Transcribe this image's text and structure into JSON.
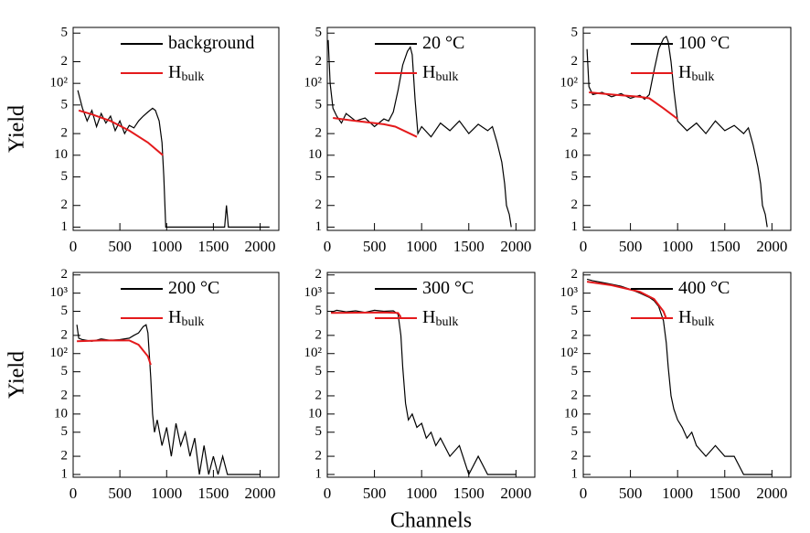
{
  "chart_data": [
    {
      "type": "line",
      "ylabel": "Yield",
      "log_y": true,
      "xlim": [
        0,
        2200
      ],
      "xticks": [
        0,
        500,
        1000,
        1500,
        2000
      ],
      "ylim": [
        0.9,
        600
      ],
      "yticks": [
        1,
        2,
        5,
        10,
        {
          "value": 20,
          "label": "2"
        },
        {
          "value": 50,
          "label": "5"
        },
        {
          "value": 100,
          "label": "10²"
        },
        {
          "value": 200,
          "label": "2"
        },
        {
          "value": 500,
          "label": "5"
        }
      ],
      "series": [
        {
          "name": "background",
          "color": "#000000",
          "x": [
            50,
            100,
            150,
            200,
            250,
            300,
            350,
            400,
            450,
            500,
            550,
            600,
            650,
            700,
            750,
            800,
            850,
            880,
            920,
            950,
            970,
            990,
            1000,
            1100,
            1200,
            1300,
            1400,
            1500,
            1600,
            1620,
            1640,
            1660,
            1700,
            1800,
            1900,
            2000,
            2100
          ],
          "values": [
            80,
            45,
            30,
            42,
            25,
            38,
            28,
            35,
            22,
            30,
            20,
            26,
            24,
            30,
            35,
            40,
            45,
            42,
            30,
            15,
            5,
            1,
            1,
            1,
            1,
            1,
            1,
            1,
            1,
            1,
            2,
            1,
            1,
            1,
            1,
            1,
            1
          ]
        },
        {
          "name": "H",
          "subscript": "bulk",
          "color": "#e41a1c",
          "x": [
            60,
            200,
            400,
            600,
            800,
            960
          ],
          "values": [
            42,
            37,
            30,
            22,
            15,
            10
          ]
        }
      ]
    },
    {
      "type": "line",
      "log_y": true,
      "xlim": [
        0,
        2200
      ],
      "xticks": [
        0,
        500,
        1000,
        1500,
        2000
      ],
      "ylim": [
        0.9,
        600
      ],
      "yticks": [
        1,
        2,
        5,
        10,
        {
          "value": 20,
          "label": "2"
        },
        {
          "value": 50,
          "label": "5"
        },
        {
          "value": 100,
          "label": "10²"
        },
        {
          "value": 200,
          "label": "2"
        },
        {
          "value": 500,
          "label": "5"
        }
      ],
      "series": [
        {
          "name": "20 °C",
          "color": "#000000",
          "x": [
            10,
            30,
            60,
            100,
            150,
            200,
            300,
            400,
            500,
            600,
            650,
            700,
            750,
            800,
            850,
            880,
            900,
            930,
            960,
            1000,
            1100,
            1200,
            1300,
            1400,
            1500,
            1600,
            1700,
            1750,
            1800,
            1850,
            1880,
            1900,
            1930,
            1950
          ],
          "values": [
            400,
            100,
            45,
            35,
            28,
            38,
            30,
            33,
            25,
            32,
            30,
            40,
            80,
            180,
            280,
            320,
            250,
            60,
            20,
            25,
            18,
            28,
            22,
            30,
            20,
            27,
            22,
            25,
            15,
            8,
            4,
            2,
            1.5,
            1
          ]
        },
        {
          "name": "H",
          "subscript": "bulk",
          "color": "#e41a1c",
          "x": [
            60,
            300,
            600,
            720,
            950
          ],
          "values": [
            33,
            30,
            27,
            25,
            18
          ]
        }
      ]
    },
    {
      "type": "line",
      "log_y": true,
      "xlim": [
        0,
        2200
      ],
      "xticks": [
        0,
        500,
        1000,
        1500,
        2000
      ],
      "ylim": [
        0.9,
        600
      ],
      "yticks": [
        1,
        2,
        5,
        10,
        {
          "value": 20,
          "label": "2"
        },
        {
          "value": 50,
          "label": "5"
        },
        {
          "value": 100,
          "label": "10²"
        },
        {
          "value": 200,
          "label": "2"
        },
        {
          "value": 500,
          "label": "5"
        }
      ],
      "series": [
        {
          "name": "100 °C",
          "color": "#000000",
          "x": [
            40,
            60,
            100,
            200,
            300,
            400,
            500,
            600,
            650,
            700,
            750,
            800,
            850,
            880,
            900,
            930,
            960,
            1000,
            1100,
            1200,
            1300,
            1400,
            1500,
            1600,
            1700,
            1750,
            1800,
            1850,
            1880,
            1900,
            1930,
            1950
          ],
          "values": [
            300,
            90,
            70,
            75,
            65,
            72,
            62,
            68,
            60,
            70,
            150,
            300,
            420,
            450,
            380,
            200,
            80,
            30,
            22,
            28,
            20,
            30,
            22,
            26,
            20,
            24,
            14,
            7,
            4,
            2,
            1.5,
            1
          ]
        },
        {
          "name": "H",
          "subscript": "bulk",
          "color": "#e41a1c",
          "x": [
            60,
            300,
            600,
            700,
            850,
            1000
          ],
          "values": [
            75,
            70,
            65,
            62,
            45,
            32
          ]
        }
      ]
    },
    {
      "type": "line",
      "ylabel": "Yield",
      "log_y": true,
      "xlim": [
        0,
        2200
      ],
      "xticks": [
        0,
        500,
        1000,
        1500,
        2000
      ],
      "ylim": [
        0.9,
        2200
      ],
      "yticks": [
        1,
        2,
        5,
        10,
        {
          "value": 20,
          "label": "2"
        },
        {
          "value": 50,
          "label": "5"
        },
        {
          "value": 100,
          "label": "10²"
        },
        {
          "value": 200,
          "label": "2"
        },
        {
          "value": 500,
          "label": "5"
        },
        {
          "value": 1000,
          "label": "10³"
        },
        {
          "value": 2000,
          "label": "2"
        }
      ],
      "series": [
        {
          "name": "200 °C",
          "color": "#000000",
          "x": [
            40,
            60,
            100,
            200,
            300,
            400,
            500,
            600,
            650,
            700,
            750,
            780,
            800,
            830,
            850,
            870,
            900,
            950,
            1000,
            1050,
            1100,
            1150,
            1200,
            1250,
            1300,
            1350,
            1400,
            1450,
            1500,
            1550,
            1600,
            1650,
            1700,
            1800,
            1900,
            2000
          ],
          "values": [
            300,
            180,
            170,
            160,
            175,
            165,
            170,
            180,
            200,
            220,
            280,
            300,
            220,
            40,
            10,
            5,
            8,
            3,
            6,
            2,
            7,
            3,
            5,
            2,
            4,
            1,
            3,
            1,
            2,
            1,
            2,
            1,
            1,
            1,
            1,
            1
          ]
        },
        {
          "name": "H",
          "subscript": "bulk",
          "color": "#e41a1c",
          "x": [
            40,
            300,
            600,
            700,
            800,
            830
          ],
          "values": [
            160,
            165,
            165,
            140,
            90,
            65
          ]
        }
      ]
    },
    {
      "type": "line",
      "xlabel": "Channels",
      "log_y": true,
      "xlim": [
        0,
        2200
      ],
      "xticks": [
        0,
        500,
        1000,
        1500,
        2000
      ],
      "ylim": [
        0.9,
        2200
      ],
      "yticks": [
        1,
        2,
        5,
        10,
        {
          "value": 20,
          "label": "2"
        },
        {
          "value": 50,
          "label": "5"
        },
        {
          "value": 100,
          "label": "10²"
        },
        {
          "value": 200,
          "label": "2"
        },
        {
          "value": 500,
          "label": "5"
        },
        {
          "value": 1000,
          "label": "10³"
        },
        {
          "value": 2000,
          "label": "2"
        }
      ],
      "series": [
        {
          "name": "300 °C",
          "color": "#000000",
          "x": [
            40,
            100,
            200,
            300,
            400,
            500,
            600,
            700,
            750,
            780,
            800,
            830,
            860,
            900,
            950,
            1000,
            1050,
            1100,
            1150,
            1200,
            1300,
            1400,
            1500,
            1600,
            1700,
            1800,
            1900,
            2000
          ],
          "values": [
            480,
            520,
            490,
            510,
            480,
            520,
            500,
            510,
            450,
            200,
            60,
            15,
            8,
            10,
            6,
            7,
            4,
            5,
            3,
            4,
            2,
            3,
            1,
            2,
            1,
            1,
            1,
            1
          ]
        },
        {
          "name": "H",
          "subscript": "bulk",
          "color": "#e41a1c",
          "x": [
            40,
            300,
            600,
            750,
            780
          ],
          "values": [
            470,
            475,
            480,
            470,
            400
          ]
        }
      ]
    },
    {
      "type": "line",
      "log_y": true,
      "xlim": [
        0,
        2200
      ],
      "xticks": [
        0,
        500,
        1000,
        1500,
        2000
      ],
      "ylim": [
        0.9,
        2200
      ],
      "yticks": [
        1,
        2,
        5,
        10,
        {
          "value": 20,
          "label": "2"
        },
        {
          "value": 50,
          "label": "5"
        },
        {
          "value": 100,
          "label": "10²"
        },
        {
          "value": 200,
          "label": "2"
        },
        {
          "value": 500,
          "label": "5"
        },
        {
          "value": 1000,
          "label": "10³"
        },
        {
          "value": 2000,
          "label": "2"
        }
      ],
      "series": [
        {
          "name": "400 °C",
          "color": "#000000",
          "x": [
            40,
            100,
            200,
            300,
            400,
            500,
            600,
            700,
            750,
            800,
            850,
            880,
            900,
            930,
            960,
            1000,
            1050,
            1100,
            1150,
            1200,
            1300,
            1400,
            1500,
            1600,
            1700,
            1800,
            1900,
            2000
          ],
          "values": [
            1700,
            1600,
            1500,
            1400,
            1300,
            1150,
            1000,
            850,
            750,
            600,
            350,
            150,
            60,
            20,
            12,
            8,
            6,
            4,
            5,
            3,
            2,
            3,
            2,
            2,
            1,
            1,
            1,
            1
          ]
        },
        {
          "name": "H",
          "subscript": "bulk",
          "color": "#e41a1c",
          "x": [
            40,
            300,
            600,
            750,
            850,
            880
          ],
          "values": [
            1550,
            1350,
            1050,
            800,
            500,
            380
          ]
        }
      ]
    }
  ]
}
